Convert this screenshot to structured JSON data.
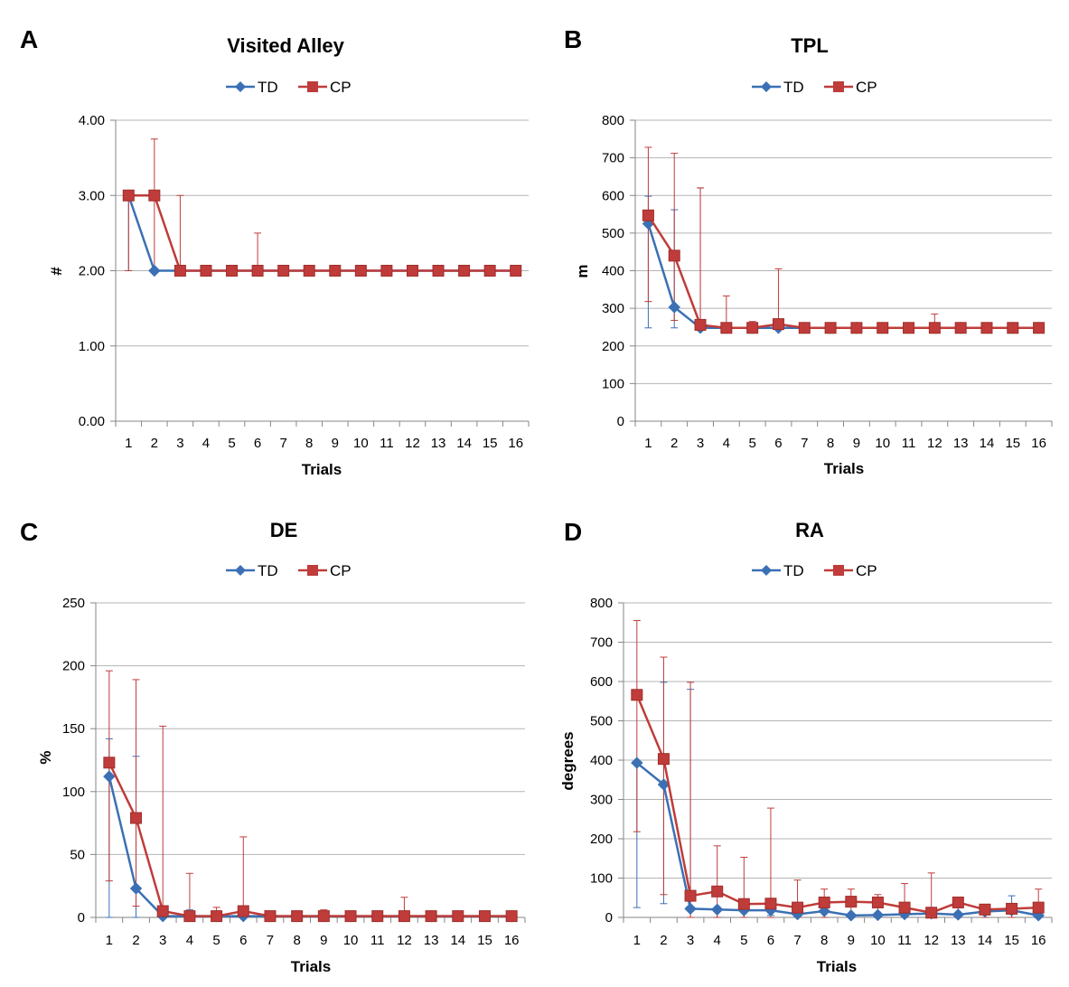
{
  "colors": {
    "TD": "#3b70b4",
    "CP": "#bf3c3a",
    "grid": "#b4b4b4",
    "axis": "#868686"
  },
  "chart_data": [
    {
      "panel": "A",
      "type": "line",
      "title": "Visited Alley",
      "xlabel": "Trials",
      "ylabel": "#",
      "ylim": [
        0,
        4
      ],
      "y_ticks": [
        "0.00",
        "1.00",
        "2.00",
        "3.00",
        "4.00"
      ],
      "y_tick_values": [
        0,
        1,
        2,
        3,
        4
      ],
      "categories": [
        "1",
        "2",
        "3",
        "4",
        "5",
        "6",
        "7",
        "8",
        "9",
        "10",
        "11",
        "12",
        "13",
        "14",
        "15",
        "16"
      ],
      "legend": [
        "TD",
        "CP"
      ],
      "series": [
        {
          "name": "TD",
          "values": [
            3,
            2,
            2,
            2,
            2,
            2,
            2,
            2,
            2,
            2,
            2,
            2,
            2,
            2,
            2,
            2
          ],
          "err_low": [
            2,
            2,
            2,
            2,
            2,
            2,
            2,
            2,
            2,
            2,
            2,
            2,
            2,
            2,
            2,
            2
          ],
          "err_high": [
            3,
            2,
            2,
            2,
            2,
            2,
            2,
            2,
            2,
            2,
            2,
            2,
            2,
            2,
            2,
            2
          ]
        },
        {
          "name": "CP",
          "values": [
            3,
            3,
            2,
            2,
            2,
            2,
            2,
            2,
            2,
            2,
            2,
            2,
            2,
            2,
            2,
            2
          ],
          "err_low": [
            2,
            2,
            2,
            2,
            2,
            2,
            2,
            2,
            2,
            2,
            2,
            2,
            2,
            2,
            2,
            2
          ],
          "err_high": [
            3,
            3.75,
            3,
            2,
            2,
            2.5,
            2,
            2,
            2,
            2,
            2,
            2,
            2,
            2,
            2,
            2
          ]
        }
      ]
    },
    {
      "panel": "B",
      "type": "line",
      "title": "TPL",
      "xlabel": "Trials",
      "ylabel": "m",
      "ylim": [
        0,
        800
      ],
      "y_ticks": [
        "0",
        "100",
        "200",
        "300",
        "400",
        "500",
        "600",
        "700",
        "800"
      ],
      "y_tick_values": [
        0,
        100,
        200,
        300,
        400,
        500,
        600,
        700,
        800
      ],
      "categories": [
        "1",
        "2",
        "3",
        "4",
        "5",
        "6",
        "7",
        "8",
        "9",
        "10",
        "11",
        "12",
        "13",
        "14",
        "15",
        "16"
      ],
      "legend": [
        "TD",
        "CP"
      ],
      "series": [
        {
          "name": "TD",
          "values": [
            525,
            303,
            248,
            248,
            248,
            248,
            248,
            248,
            248,
            248,
            248,
            248,
            248,
            248,
            248,
            248
          ],
          "err_low": [
            248,
            248,
            248,
            248,
            248,
            248,
            248,
            248,
            248,
            248,
            248,
            248,
            248,
            248,
            248,
            248
          ],
          "err_high": [
            598,
            562,
            620,
            248,
            248,
            248,
            248,
            248,
            248,
            248,
            248,
            248,
            248,
            248,
            248,
            248
          ]
        },
        {
          "name": "CP",
          "values": [
            547,
            440,
            256,
            248,
            248,
            258,
            248,
            248,
            248,
            248,
            248,
            248,
            248,
            248,
            248,
            248
          ],
          "err_low": [
            318,
            268,
            248,
            248,
            248,
            248,
            248,
            248,
            248,
            248,
            248,
            248,
            248,
            248,
            248,
            248
          ],
          "err_high": [
            728,
            712,
            620,
            333,
            265,
            405,
            248,
            248,
            248,
            248,
            248,
            285,
            248,
            248,
            248,
            248
          ]
        }
      ]
    },
    {
      "panel": "C",
      "type": "line",
      "title": "DE",
      "xlabel": "Trials",
      "ylabel": "%",
      "ylim": [
        0,
        250
      ],
      "y_ticks": [
        "0",
        "50",
        "100",
        "150",
        "200",
        "250"
      ],
      "y_tick_values": [
        0,
        50,
        100,
        150,
        200,
        250
      ],
      "categories": [
        "1",
        "2",
        "3",
        "4",
        "5",
        "6",
        "7",
        "8",
        "9",
        "10",
        "11",
        "12",
        "13",
        "14",
        "15",
        "16"
      ],
      "legend": [
        "TD",
        "CP"
      ],
      "series": [
        {
          "name": "TD",
          "values": [
            112,
            23,
            1,
            1,
            1,
            1,
            1,
            1,
            1,
            1,
            1,
            1,
            1,
            1,
            1,
            1
          ],
          "err_low": [
            0,
            0,
            0,
            0,
            0,
            0,
            0,
            0,
            0,
            0,
            0,
            0,
            0,
            0,
            0,
            0
          ],
          "err_high": [
            142,
            128,
            1,
            6,
            1,
            1,
            1,
            1,
            1,
            1,
            1,
            1,
            1,
            1,
            1,
            1
          ]
        },
        {
          "name": "CP",
          "values": [
            123,
            79,
            5,
            1,
            1,
            5,
            1,
            1,
            1,
            1,
            1,
            1,
            1,
            1,
            1,
            1
          ],
          "err_low": [
            29,
            9,
            0,
            0,
            0,
            0,
            0,
            0,
            0,
            0,
            0,
            0,
            0,
            0,
            0,
            0
          ],
          "err_high": [
            196,
            189,
            152,
            35,
            8,
            64,
            1,
            1,
            6,
            1,
            1,
            16,
            3,
            1,
            1,
            1
          ]
        }
      ]
    },
    {
      "panel": "D",
      "type": "line",
      "title": "RA",
      "xlabel": "Trials",
      "ylabel": "degrees",
      "ylim": [
        0,
        800
      ],
      "y_ticks": [
        "0",
        "100",
        "200",
        "300",
        "400",
        "500",
        "600",
        "700",
        "800"
      ],
      "y_tick_values": [
        0,
        100,
        200,
        300,
        400,
        500,
        600,
        700,
        800
      ],
      "categories": [
        "1",
        "2",
        "3",
        "4",
        "5",
        "6",
        "7",
        "8",
        "9",
        "10",
        "11",
        "12",
        "13",
        "14",
        "15",
        "16"
      ],
      "legend": [
        "TD",
        "CP"
      ],
      "series": [
        {
          "name": "TD",
          "values": [
            393,
            338,
            22,
            20,
            18,
            18,
            8,
            16,
            5,
            6,
            8,
            10,
            7,
            15,
            18,
            5
          ],
          "err_low": [
            25,
            35,
            0,
            0,
            0,
            5,
            0,
            0,
            0,
            0,
            0,
            0,
            0,
            0,
            0,
            0
          ],
          "err_high": [
            210,
            598,
            580,
            20,
            18,
            18,
            8,
            16,
            5,
            6,
            8,
            10,
            7,
            15,
            55,
            5
          ]
        },
        {
          "name": "CP",
          "values": [
            566,
            403,
            55,
            66,
            34,
            35,
            25,
            38,
            40,
            38,
            25,
            12,
            38,
            20,
            22,
            25
          ],
          "err_low": [
            218,
            58,
            0,
            0,
            0,
            0,
            0,
            0,
            0,
            0,
            0,
            0,
            0,
            0,
            0,
            0
          ],
          "err_high": [
            755,
            662,
            598,
            182,
            153,
            278,
            95,
            72,
            72,
            58,
            86,
            113,
            38,
            20,
            22,
            72
          ]
        }
      ]
    }
  ]
}
